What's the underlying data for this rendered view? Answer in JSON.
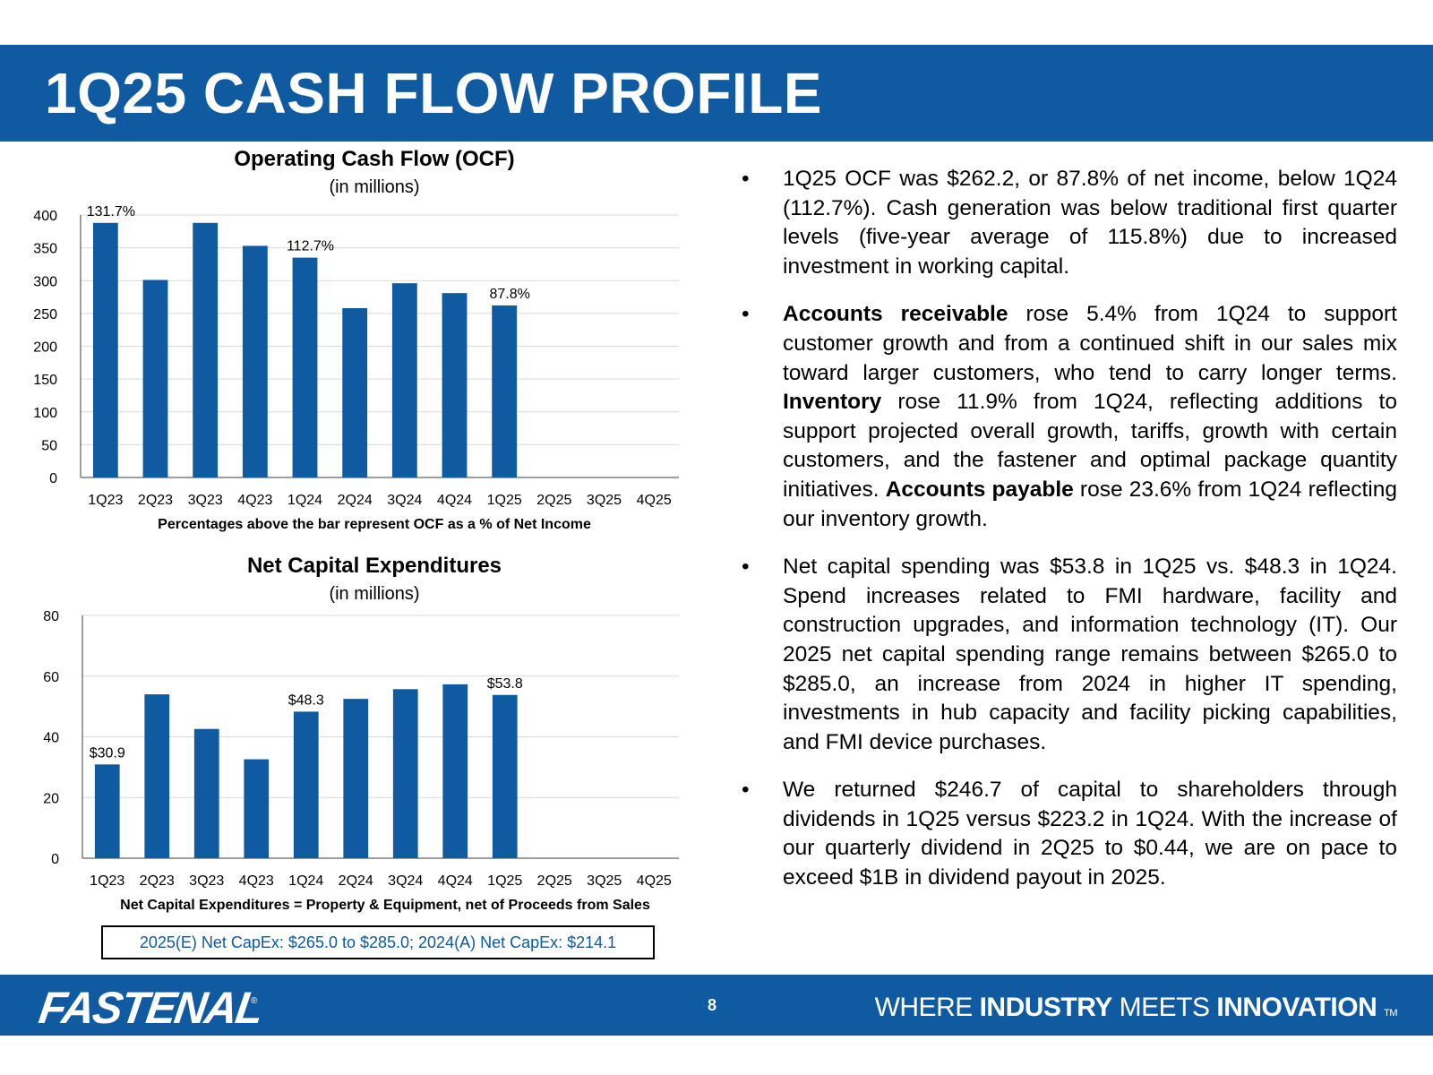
{
  "page": {
    "title": "1Q25 CASH FLOW PROFILE",
    "page_number": "8",
    "logo_text": "FASTENAL",
    "logo_reg": "®",
    "tagline": {
      "w1": "WHERE",
      "w2": "INDUSTRY",
      "w3": "MEETS",
      "w4": "INNOVATION",
      "tm": "TM"
    },
    "estimate_box": "2025(E) Net CapEx: $265.0 to $285.0; 2024(A) Net CapEx: $214.1",
    "bullet_glyph": "•"
  },
  "colors": {
    "brand_blue": "#0f5aa0",
    "bar_blue": "#0f5aa0",
    "grid": "#d9d9d9",
    "axis": "#7f7f7f"
  },
  "bullets": {
    "b1": {
      "text": "1Q25 OCF was $262.2, or 87.8% of net income, below 1Q24 (112.7%). Cash generation was below traditional first quarter levels (five-year average of 115.8%) due to increased investment in working capital."
    },
    "b2": {
      "bold1": "Accounts receivable",
      "text1": " rose 5.4% from 1Q24 to support customer growth and from a continued shift in our sales mix toward larger customers, who tend to carry longer terms. ",
      "bold2": "Inventory",
      "text2": " rose 11.9% from 1Q24, reflecting additions to support projected overall growth, tariffs, growth with certain customers, and the fastener and optimal package quantity initiatives. ",
      "bold3": "Accounts payable",
      "text3": " rose 23.6% from 1Q24 reflecting our inventory growth."
    },
    "b3": {
      "text": "Net capital spending was $53.8 in 1Q25 vs. $48.3 in 1Q24. Spend increases related to FMI hardware, facility and construction upgrades, and information technology (IT). Our 2025 net capital spending range remains between $265.0 to $285.0, an increase from 2024 in higher IT spending, investments in hub capacity and facility picking capabilities, and FMI device purchases."
    },
    "b4": {
      "text": "We returned $246.7 of capital to shareholders through dividends in 1Q25 versus $223.2 in 1Q24. With the increase of our quarterly dividend in 2Q25 to $0.44, we are on pace to exceed $1B in dividend payout in 2025."
    }
  },
  "chart_data": [
    {
      "type": "bar",
      "title": "Operating Cash Flow (OCF)",
      "subtitle": "(in millions)",
      "footnote": "Percentages above the bar represent OCF as a % of Net Income",
      "categories": [
        "1Q23",
        "2Q23",
        "3Q23",
        "4Q23",
        "1Q24",
        "2Q24",
        "3Q24",
        "4Q24",
        "1Q25",
        "2Q25",
        "3Q25",
        "4Q25"
      ],
      "values": [
        388,
        301,
        388,
        353,
        335,
        258,
        296,
        281,
        262.2,
        null,
        null,
        null
      ],
      "data_labels": {
        "0": "131.7%",
        "4": "112.7%",
        "8": "87.8%"
      },
      "ylim": [
        0,
        400
      ],
      "yticks": [
        0,
        50,
        100,
        150,
        200,
        250,
        300,
        350,
        400
      ],
      "grid": true,
      "legend": "none"
    },
    {
      "type": "bar",
      "title": "Net Capital Expenditures",
      "subtitle": "(in millions)",
      "footnote": "Net Capital Expenditures = Property & Equipment, net of Proceeds from Sales",
      "categories": [
        "1Q23",
        "2Q23",
        "3Q23",
        "4Q23",
        "1Q24",
        "2Q24",
        "3Q24",
        "4Q24",
        "1Q25",
        "2Q25",
        "3Q25",
        "4Q25"
      ],
      "values": [
        30.9,
        54,
        42.6,
        32.6,
        48.3,
        52.5,
        55.7,
        57.3,
        53.8,
        null,
        null,
        null
      ],
      "data_labels": {
        "0": "$30.9",
        "4": "$48.3",
        "8": "$53.8"
      },
      "ylim": [
        0,
        80
      ],
      "yticks": [
        0,
        20,
        40,
        60,
        80
      ],
      "grid": true,
      "legend": "none"
    }
  ]
}
